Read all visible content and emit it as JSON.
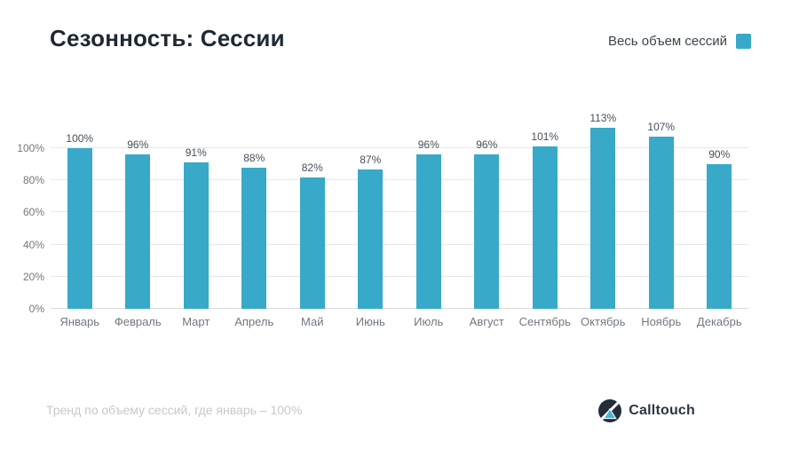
{
  "title": "Сезонность: Сессии",
  "legend": {
    "label": "Весь объем сессий",
    "color": "#38a9c8"
  },
  "footer": {
    "note": "Тренд по объему сессий, где январь – 100%",
    "brand": "Calltouch"
  },
  "chart_data": {
    "type": "bar",
    "title": "Сезонность: Сессии",
    "series_name": "Весь объем сессий",
    "categories": [
      "Январь",
      "Февраль",
      "Март",
      "Апрель",
      "Май",
      "Июнь",
      "Июль",
      "Август",
      "Сентябрь",
      "Октябрь",
      "Ноябрь",
      "Декабрь"
    ],
    "values": [
      100,
      96,
      91,
      88,
      82,
      87,
      96,
      96,
      101,
      113,
      107,
      90
    ],
    "value_suffix": "%",
    "bar_color": "#38a9c8",
    "yticks": [
      0,
      20,
      40,
      60,
      80,
      100
    ],
    "ytick_labels": [
      "0%",
      "20%",
      "40%",
      "60%",
      "80%",
      "100%"
    ],
    "ylim": [
      0,
      126
    ],
    "grid": true,
    "legend_position": "top-right",
    "xlabel": "",
    "ylabel": ""
  }
}
